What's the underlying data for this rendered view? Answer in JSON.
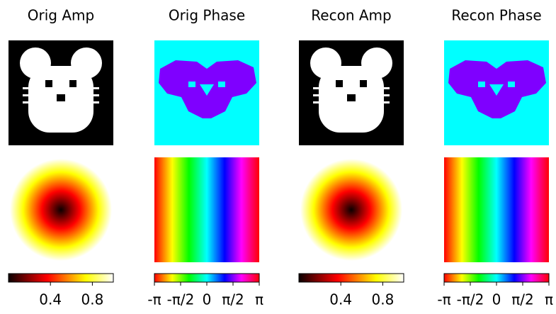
{
  "chart_data": [
    {
      "type": "image",
      "title": "Orig Amp",
      "colormap": "hot",
      "clim": [
        0,
        1
      ],
      "ticks": [
        0.4,
        0.8
      ]
    },
    {
      "type": "image",
      "title": "Orig Phase",
      "colormap": "hsv",
      "clim": [
        -3.141592653589793,
        3.141592653589793
      ],
      "ticks": [
        {
          "value": -3.141592653589793,
          "label": "-π"
        },
        {
          "value": -1.5707963267948966,
          "label": "-π/2"
        },
        0,
        {
          "value": 1.5707963267948966,
          "label": "π/2"
        },
        {
          "value": 3.141592653589793,
          "label": "π"
        }
      ]
    },
    {
      "type": "image",
      "title": "Recon Amp",
      "colormap": "hot",
      "clim": [
        0,
        1
      ],
      "ticks": [
        0.4,
        0.8
      ]
    },
    {
      "type": "image",
      "title": "Recon Phase",
      "colormap": "hsv",
      "clim": [
        -3.141592653589793,
        3.141592653589793
      ],
      "ticks": [
        {
          "value": -3.141592653589793,
          "label": "-π"
        },
        {
          "value": -1.5707963267948966,
          "label": "-π/2"
        },
        0,
        {
          "value": 1.5707963267948966,
          "label": "π/2"
        },
        {
          "value": 3.141592653589793,
          "label": "π"
        }
      ]
    }
  ]
}
